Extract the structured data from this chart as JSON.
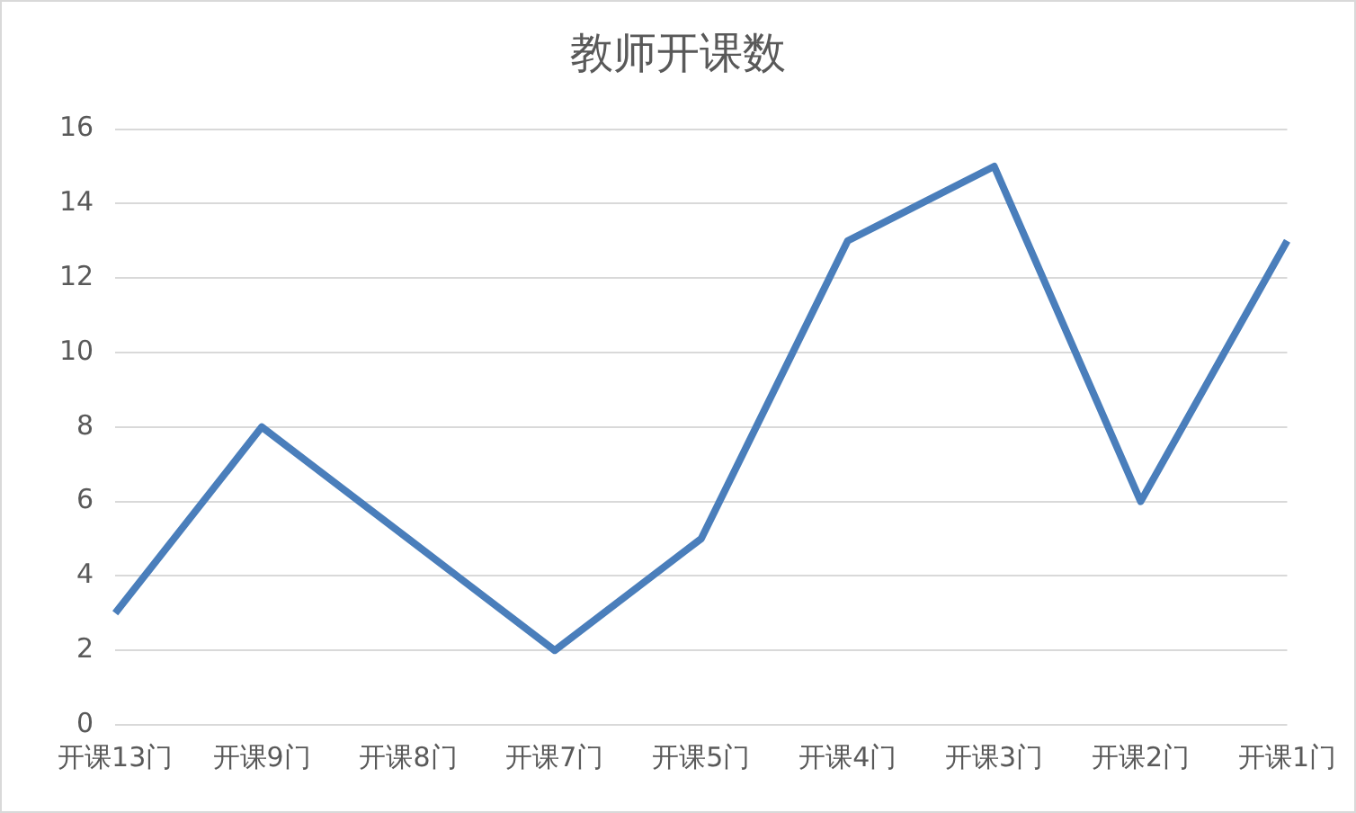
{
  "chart_data": {
    "type": "line",
    "title": "教师开课数",
    "categories": [
      "开课13门",
      "开课9门",
      "开课8门",
      "开课7门",
      "开课5门",
      "开课4门",
      "开课3门",
      "开课2门",
      "开课1门"
    ],
    "series": [
      {
        "color": "#4a7ebb",
        "values": [
          3,
          8,
          5,
          2,
          5,
          13,
          15,
          6,
          13
        ]
      }
    ],
    "ylim": [
      0,
      16
    ],
    "yticks": [
      0,
      2,
      4,
      6,
      8,
      10,
      12,
      14,
      16
    ],
    "grid": "y",
    "legend": false,
    "marker": "none",
    "line_style": "solid"
  }
}
